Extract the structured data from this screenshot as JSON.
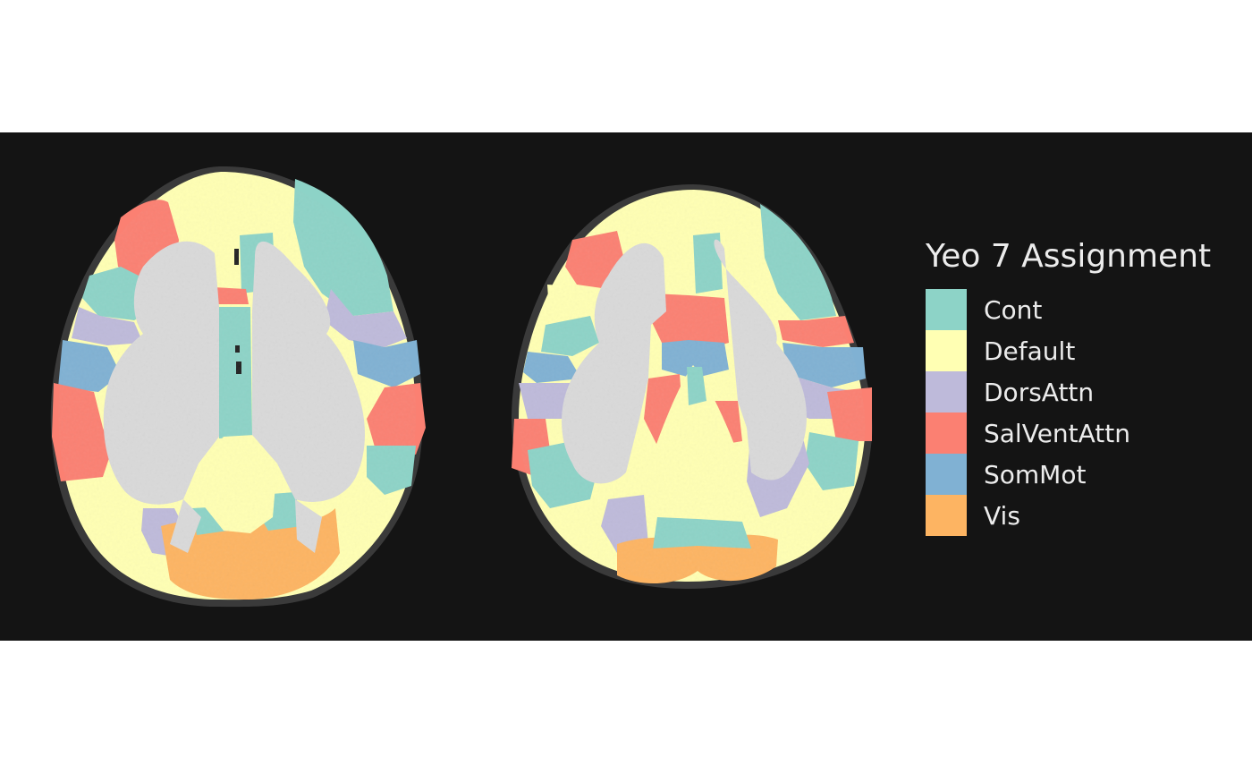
{
  "legend": {
    "title": "Yeo 7 Assignment",
    "items": [
      {
        "label": "Cont",
        "color": "#8dd3c7"
      },
      {
        "label": "Default",
        "color": "#ffffb3"
      },
      {
        "label": "DorsAttn",
        "color": "#bebada"
      },
      {
        "label": "SalVentAttn",
        "color": "#fb8072"
      },
      {
        "label": "SomMot",
        "color": "#80b1d3"
      },
      {
        "label": "Vis",
        "color": "#fdb462"
      }
    ]
  },
  "colors": {
    "background": "#141414",
    "white_matter": "#d9d9d9",
    "page": "#ffffff"
  }
}
